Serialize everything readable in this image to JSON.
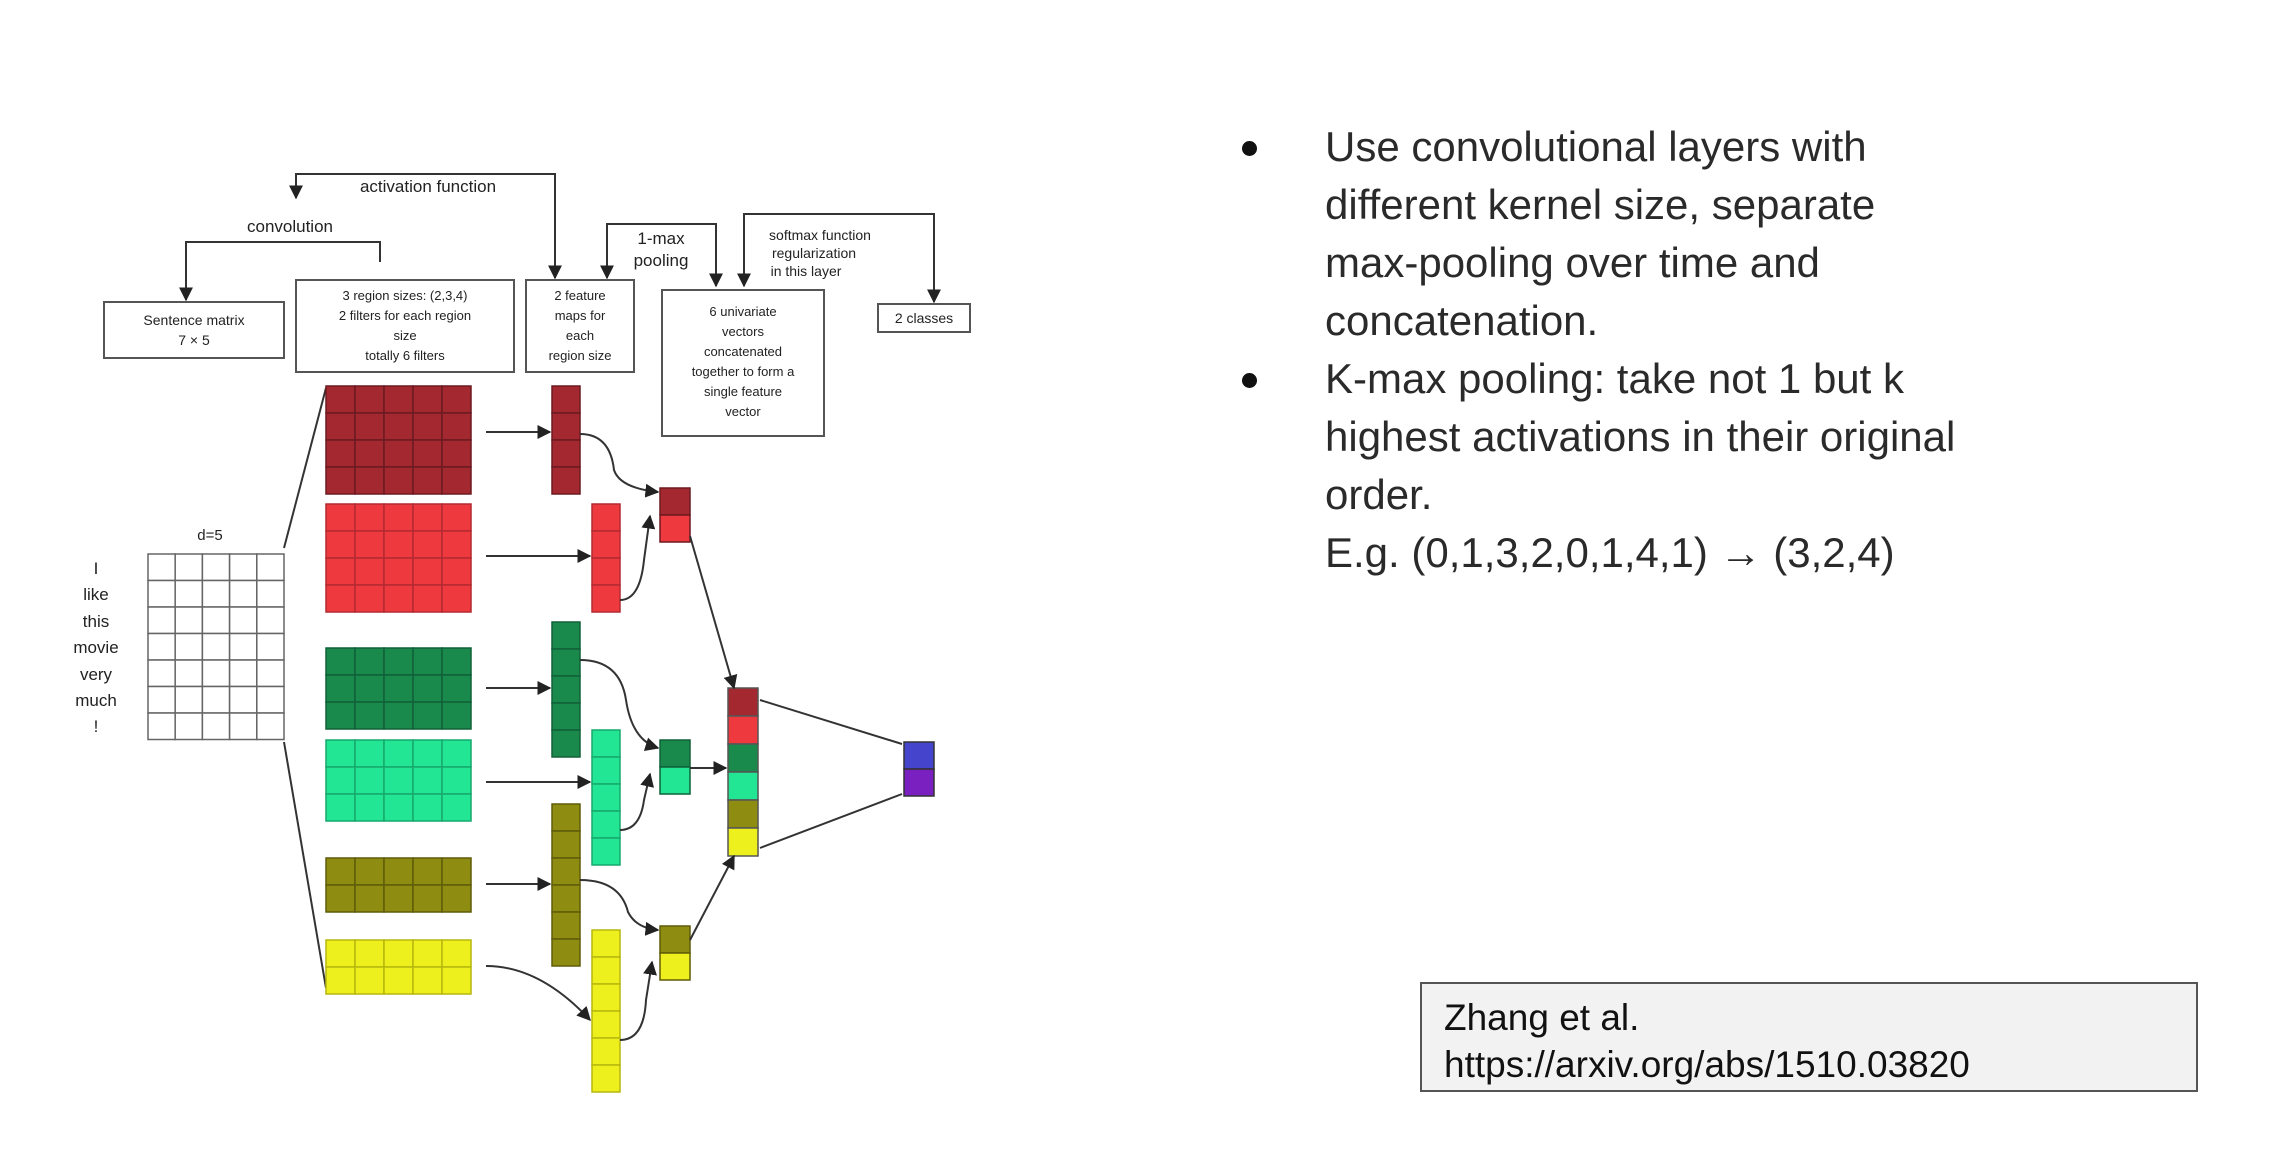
{
  "diagram": {
    "arrows": {
      "convolution": "convolution",
      "activation": "activation function",
      "pooling": [
        "1-max",
        "pooling"
      ],
      "softmax": [
        "softmax function",
        "regularization",
        "in this layer"
      ]
    },
    "boxes": {
      "sentence": [
        "Sentence matrix",
        "7 × 5"
      ],
      "regions": [
        "3 region sizes: (2,3,4)",
        "2 filters for each region",
        "size",
        "totally 6 filters"
      ],
      "featuremaps": [
        "2 feature",
        "maps for",
        "each",
        "region size"
      ],
      "univariate": [
        "6 univariate",
        "vectors",
        "concatenated",
        "together to form a",
        "single feature",
        "vector"
      ],
      "classes": "2 classes"
    },
    "dim_label": "d=5",
    "words": [
      "I",
      "like",
      "this",
      "movie",
      "very",
      "much",
      "!"
    ],
    "colors": {
      "darkred": "#a32830",
      "red": "#ee3a3f",
      "darkgreen": "#1a8a4c",
      "green": "#22e694",
      "olive": "#8f8d11",
      "yellow": "#eef01e",
      "blue": "#4444cc",
      "purple": "#7a1fc0"
    }
  },
  "bullets": [
    {
      "lines": [
        "Use convolutional layers with",
        "different kernel size, separate",
        "max-pooling over time and",
        "concatenation."
      ]
    },
    {
      "lines": [
        "K-max pooling: take not 1 but k",
        "highest activations in their original",
        "order.",
        "E.g. (0,1,3,2,0,1,4,1) → (3,2,4)"
      ]
    }
  ],
  "citation": {
    "author": "Zhang et al.",
    "url": "https://arxiv.org/abs/1510.03820"
  }
}
